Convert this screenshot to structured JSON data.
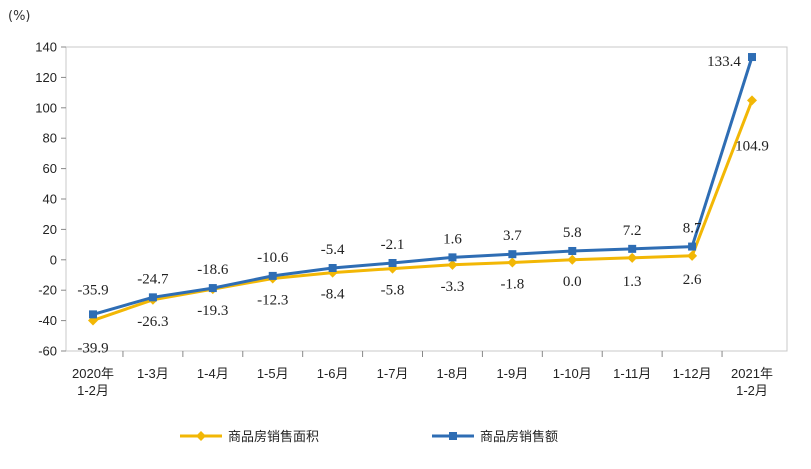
{
  "chart_data": {
    "type": "line",
    "ylabel": "(%)",
    "ylim": [
      -60,
      140
    ],
    "yticks": [
      -60,
      -40,
      -20,
      0,
      20,
      40,
      60,
      80,
      100,
      120,
      140
    ],
    "categories": [
      [
        "2020年",
        "1-2月"
      ],
      [
        "1-3月"
      ],
      [
        "1-4月"
      ],
      [
        "1-5月"
      ],
      [
        "1-6月"
      ],
      [
        "1-7月"
      ],
      [
        "1-8月"
      ],
      [
        "1-9月"
      ],
      [
        "1-10月"
      ],
      [
        "1-11月"
      ],
      [
        "1-12月"
      ],
      [
        "2021年",
        "1-2月"
      ]
    ],
    "series": [
      {
        "name": "商品房销售面积",
        "color": "#F2B705",
        "marker": "diamond",
        "values": [
          -39.9,
          -26.3,
          -19.3,
          -12.3,
          -8.4,
          -5.8,
          -3.3,
          -1.8,
          0.0,
          1.3,
          2.6,
          104.9
        ],
        "labels": [
          "-39.9",
          "-26.3",
          "-19.3",
          "-12.3",
          "-8.4",
          "-5.8",
          "-3.3",
          "-1.8",
          "0.0",
          "1.3",
          "2.6",
          "104.9"
        ]
      },
      {
        "name": "商品房销售额",
        "color": "#2E6DB4",
        "marker": "square",
        "values": [
          -35.9,
          -24.7,
          -18.6,
          -10.6,
          -5.4,
          -2.1,
          1.6,
          3.7,
          5.8,
          7.2,
          8.7,
          133.4
        ],
        "labels": [
          "-35.9",
          "-24.7",
          "-18.6",
          "-10.6",
          "-5.4",
          "-2.1",
          "1.6",
          "3.7",
          "5.8",
          "7.2",
          "8.7",
          "133.4"
        ]
      }
    ],
    "grid": false,
    "legend_position": "bottom"
  }
}
